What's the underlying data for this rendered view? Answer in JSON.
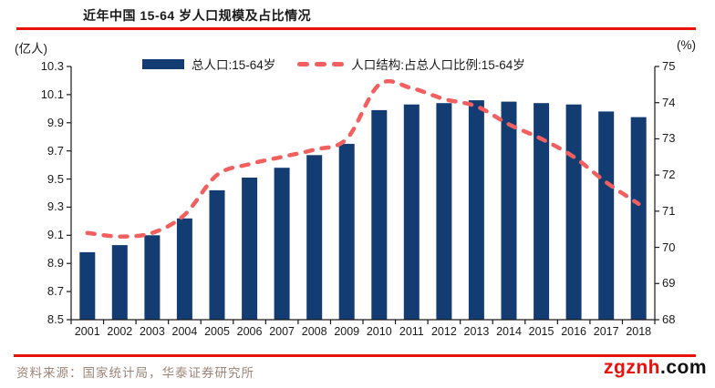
{
  "header": {
    "title": "近年中国 15-64 岁人口规模及占比情况"
  },
  "axes": {
    "left_unit": "(亿人)",
    "right_unit": "(%)"
  },
  "legend": [
    {
      "swatch": "bar-swatch",
      "label": "总人口:15-64岁"
    },
    {
      "swatch": "dashed-line-swatch",
      "label": "人口结构:占总人口比例:15-64岁"
    }
  ],
  "colors": {
    "bar_navy": "#133c72",
    "line_salmon": "#f25f5f",
    "accent_red": "#e8120b",
    "axis": "#1a1a1a",
    "source_text": "#9c8577"
  },
  "chart_data": {
    "type": "bar",
    "title": "近年中国 15-64 岁人口规模及占比情况",
    "categories": [
      "2001",
      "2002",
      "2003",
      "2004",
      "2005",
      "2006",
      "2007",
      "2008",
      "2009",
      "2010",
      "2011",
      "2012",
      "2013",
      "2014",
      "2015",
      "2016",
      "2017",
      "2018"
    ],
    "series": [
      {
        "name": "总人口:15-64岁",
        "type": "bar",
        "axis": "left",
        "unit": "亿人",
        "color": "#133c72",
        "values": [
          8.98,
          9.03,
          9.1,
          9.22,
          9.42,
          9.51,
          9.58,
          9.67,
          9.75,
          9.99,
          10.03,
          10.04,
          10.06,
          10.05,
          10.04,
          10.03,
          9.98,
          9.94
        ]
      },
      {
        "name": "人口结构:占总人口比例:15-64岁",
        "type": "line",
        "style": "dashed",
        "axis": "right",
        "unit": "%",
        "color": "#f25f5f",
        "values": [
          70.4,
          70.3,
          70.4,
          70.9,
          72.0,
          72.3,
          72.5,
          72.7,
          73.0,
          74.5,
          74.4,
          74.1,
          73.9,
          73.4,
          73.0,
          72.5,
          71.8,
          71.2
        ]
      }
    ],
    "ylim_left": [
      8.5,
      10.3
    ],
    "ylim_right": [
      68,
      75
    ],
    "yticks_left": [
      10.3,
      10.1,
      9.9,
      9.7,
      9.5,
      9.3,
      9.1,
      8.9,
      8.7,
      8.5
    ],
    "yticks_right": [
      75,
      74,
      73,
      72,
      71,
      70,
      69,
      68
    ],
    "grid": false,
    "legend_position": "top"
  },
  "footer": {
    "source": "资料来源：国家统计局，华泰证券研究所",
    "watermark_red": "zgznh",
    "watermark_black": ".com"
  }
}
